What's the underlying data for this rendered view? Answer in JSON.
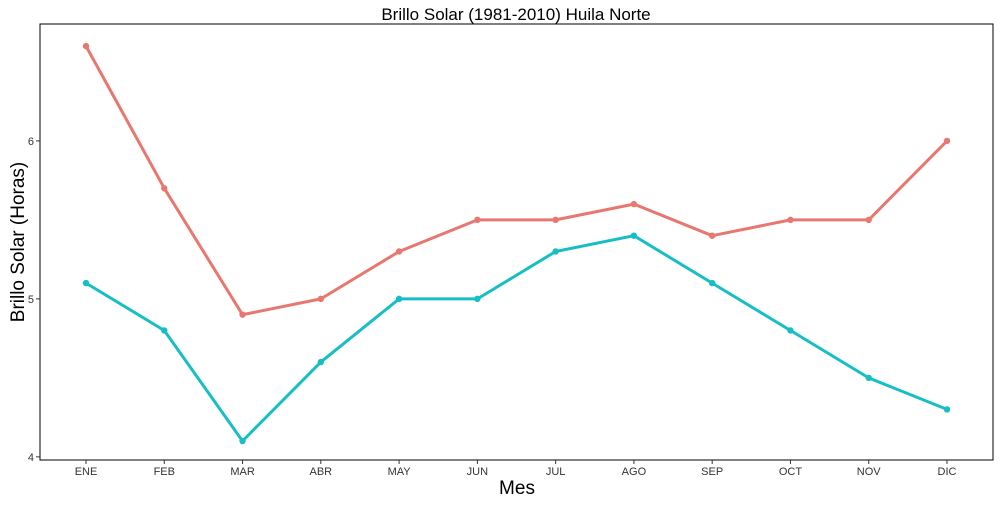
{
  "chart_data": {
    "type": "line",
    "title": "Brillo Solar (1981-2010)  Huila Norte",
    "xlabel": "Mes",
    "ylabel": "Brillo Solar (Horas)",
    "categories": [
      "ENE",
      "FEB",
      "MAR",
      "ABR",
      "MAY",
      "JUN",
      "JUL",
      "AGO",
      "SEP",
      "OCT",
      "NOV",
      "DIC"
    ],
    "yticks": [
      4,
      5,
      6
    ],
    "ylim": [
      3.98,
      6.74
    ],
    "grid": false,
    "legend": "none",
    "series": [
      {
        "color": "#E8776F",
        "values": [
          6.6,
          5.7,
          4.9,
          5.0,
          5.3,
          5.5,
          5.5,
          5.6,
          5.4,
          5.5,
          5.5,
          6.0
        ]
      },
      {
        "color": "#17BEC3",
        "values": [
          5.1,
          4.8,
          4.1,
          4.6,
          5.0,
          5.0,
          5.3,
          5.4,
          5.1,
          4.8,
          4.5,
          4.3
        ]
      }
    ]
  }
}
